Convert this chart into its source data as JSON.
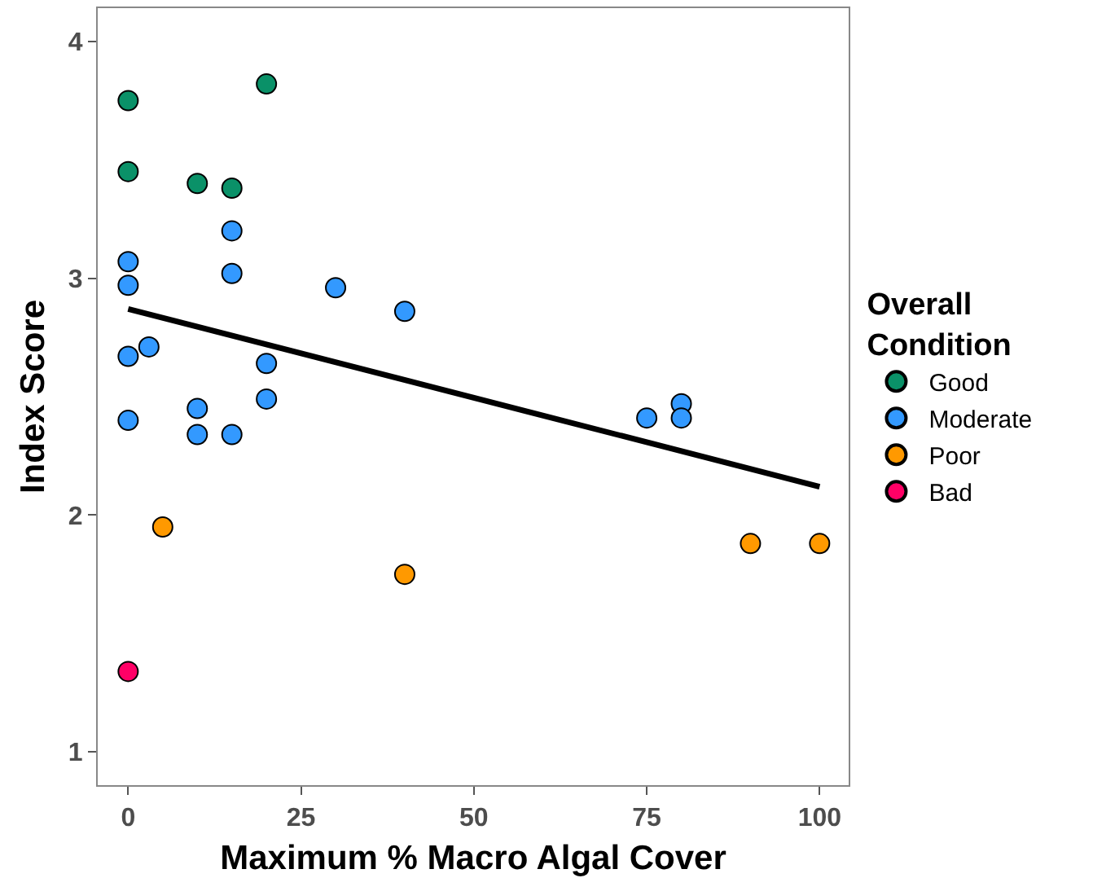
{
  "chart_data": {
    "type": "scatter",
    "xlabel": "Maximum % Macro Algal Cover",
    "ylabel": "Index Score",
    "legend_title": "Overall Condition",
    "xlim": [
      -4.4,
      104.2
    ],
    "ylim": [
      0.86,
      4.14
    ],
    "xticks": [
      0,
      25,
      50,
      75,
      100
    ],
    "yticks": [
      1,
      2,
      3,
      4
    ],
    "legend": "right",
    "marker": "circle",
    "series": [
      {
        "name": "Good",
        "color": "#0a9168",
        "x": [
          0,
          0,
          20,
          10,
          15
        ],
        "values": [
          3.75,
          3.45,
          3.82,
          3.4,
          3.38
        ]
      },
      {
        "name": "Moderate",
        "color": "#3399ff",
        "x": [
          0,
          0,
          15,
          15,
          30,
          40,
          0,
          3,
          20,
          20,
          10,
          10,
          15,
          0,
          75,
          80,
          80
        ],
        "values": [
          3.07,
          2.97,
          3.2,
          3.02,
          2.96,
          2.86,
          2.67,
          2.71,
          2.64,
          2.49,
          2.45,
          2.34,
          2.34,
          2.4,
          2.41,
          2.47,
          2.41
        ]
      },
      {
        "name": "Poor",
        "color": "#ff9900",
        "x": [
          5,
          40,
          90,
          100
        ],
        "values": [
          1.95,
          1.75,
          1.88,
          1.88
        ]
      },
      {
        "name": "Bad",
        "color": "#ff0066",
        "x": [
          0
        ],
        "values": [
          1.34
        ]
      },
      {
        "type": "line",
        "marker": "none",
        "color": "#000000",
        "x": [
          0,
          100
        ],
        "values": [
          2.87,
          2.12
        ]
      }
    ]
  }
}
